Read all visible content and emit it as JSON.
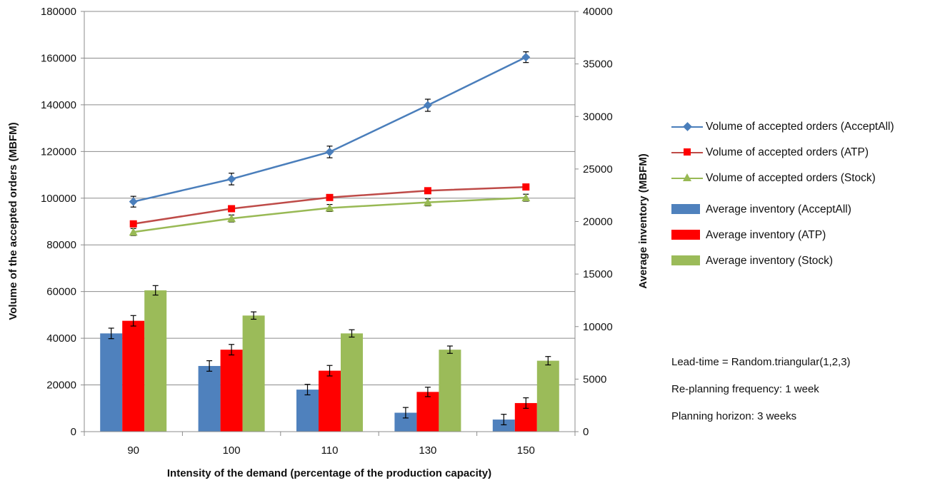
{
  "chart_data": {
    "type": "bar",
    "categories": [
      "90",
      "100",
      "110",
      "130",
      "150"
    ],
    "xlabel": "Intensity of the demand (percentage of the production capacity)",
    "ylabel": "Volume of the accepted orders (MBFM)",
    "y2label": "Average inventory (MBFM)",
    "ylim": [
      0,
      180000
    ],
    "y2lim": [
      0,
      40000
    ],
    "yticks": [
      "0",
      "20000",
      "40000",
      "60000",
      "80000",
      "100000",
      "120000",
      "140000",
      "160000",
      "180000"
    ],
    "y2ticks": [
      "0",
      "5000",
      "10000",
      "15000",
      "20000",
      "25000",
      "30000",
      "35000",
      "40000"
    ],
    "grid": true,
    "legend_position": "right",
    "bar_series": [
      {
        "name": "Average inventory (AcceptAll)",
        "color": "#4f81bd",
        "axis": "right",
        "values": [
          9350,
          6250,
          4000,
          1800,
          1150
        ],
        "error": [
          500,
          500,
          500,
          500,
          500
        ]
      },
      {
        "name": "Average inventory (ATP)",
        "color": "#ff0000",
        "axis": "right",
        "values": [
          10550,
          7800,
          5800,
          3780,
          2720
        ],
        "error": [
          500,
          500,
          500,
          450,
          500
        ]
      },
      {
        "name": "Average inventory (Stock)",
        "color": "#9bbb59",
        "axis": "right",
        "values": [
          13450,
          11050,
          9350,
          7800,
          6750
        ],
        "error": [
          450,
          350,
          350,
          350,
          400
        ]
      }
    ],
    "line_series": [
      {
        "name": "Volume of accepted orders (AcceptAll)",
        "color": "#4a7ebb",
        "marker": "diamond",
        "axis": "left",
        "values": [
          98500,
          108200,
          119800,
          139800,
          160400
        ],
        "error": [
          2300,
          2500,
          2500,
          2600,
          2300
        ]
      },
      {
        "name": "Volume of accepted orders (ATP)",
        "color": "#be4b48",
        "marker": "square",
        "axis": "left",
        "values": [
          89000,
          95500,
          100300,
          103200,
          104800
        ],
        "error": [
          800,
          800,
          800,
          800,
          800
        ]
      },
      {
        "name": "Volume of accepted orders (Stock)",
        "color": "#98b954",
        "marker": "triangle",
        "axis": "left",
        "values": [
          85500,
          91300,
          95800,
          98200,
          100200
        ],
        "error": [
          1500,
          1500,
          1500,
          1500,
          1500
        ]
      }
    ]
  },
  "legend": [
    {
      "label": "Volume of accepted orders (AcceptAll)",
      "kind": "line",
      "marker": "diamond",
      "color": "#4a7ebb"
    },
    {
      "label": "Volume of accepted orders (ATP)",
      "kind": "line",
      "marker": "square",
      "color": "#be4b48",
      "markerColor": "#ff0000"
    },
    {
      "label": "Volume of accepted orders (Stock)",
      "kind": "line",
      "marker": "triangle",
      "color": "#98b954"
    },
    {
      "label": "Average inventory (AcceptAll)",
      "kind": "bar",
      "color": "#4f81bd"
    },
    {
      "label": "Average inventory (ATP)",
      "kind": "bar",
      "color": "#ff0000"
    },
    {
      "label": "Average inventory (Stock)",
      "kind": "bar",
      "color": "#9bbb59"
    }
  ],
  "notes": [
    "Lead-time = Random.triangular(1,2,3)",
    "Re-planning frequency: 1 week",
    "Planning horizon: 3 weeks"
  ]
}
